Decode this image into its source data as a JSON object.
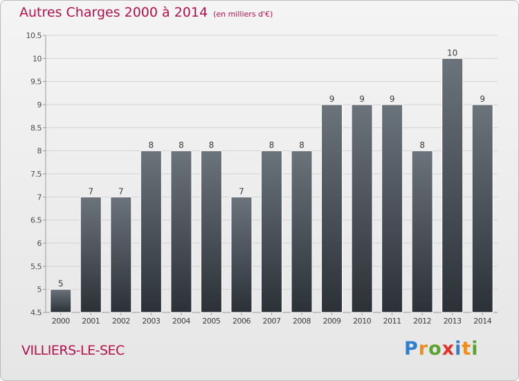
{
  "title": "Autres Charges 2000 à 2014",
  "subtitle": "(en milliers d'€)",
  "commune": "VILLIERS-LE-SEC",
  "logo": {
    "text": "Proxiti",
    "colors": [
      "#2f7fd0",
      "#f08c1a",
      "#5aa52c",
      "#e0322a",
      "#2f7fd0",
      "#f08c1a",
      "#5aa52c"
    ]
  },
  "colors": {
    "accent": "#b5104a",
    "bar_top": "#6b737b",
    "bar_bottom": "#2b3137"
  },
  "chart_data": {
    "type": "bar",
    "categories": [
      "2000",
      "2001",
      "2002",
      "2003",
      "2004",
      "2005",
      "2006",
      "2007",
      "2008",
      "2009",
      "2010",
      "2011",
      "2012",
      "2013",
      "2014"
    ],
    "values": [
      5,
      7,
      7,
      8,
      8,
      8,
      7,
      8,
      8,
      9,
      9,
      9,
      8,
      10,
      9
    ],
    "data_labels": [
      "5",
      "7",
      "7",
      "8",
      "8",
      "8",
      "7",
      "8",
      "8",
      "9",
      "9",
      "9",
      "8",
      "10",
      "9"
    ],
    "ylim": [
      4.5,
      10.5
    ],
    "yticks": [
      4.5,
      5,
      5.5,
      6,
      6.5,
      7,
      7.5,
      8,
      8.5,
      9,
      9.5,
      10,
      10.5
    ],
    "ytick_labels": [
      "4.5",
      "5",
      "5.5",
      "6",
      "6.5",
      "7",
      "7.5",
      "8",
      "8.5",
      "9",
      "9.5",
      "10",
      "10.5"
    ],
    "grid": true,
    "xlabel": "",
    "ylabel": ""
  }
}
